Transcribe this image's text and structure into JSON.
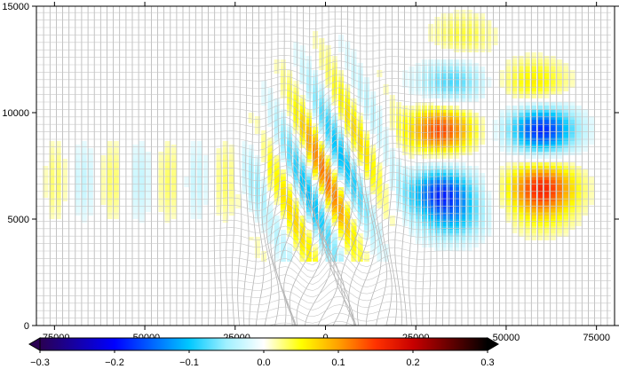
{
  "chart_data": {
    "type": "heatmap",
    "title": "",
    "xlabel": "",
    "ylabel": "",
    "xlim": [
      -80000,
      80000
    ],
    "ylim": [
      0,
      15000
    ],
    "x_ticks": [
      {
        "value": -75000,
        "label": "-75000"
      },
      {
        "value": -50000,
        "label": "-50000"
      },
      {
        "value": -25000,
        "label": "-25000"
      },
      {
        "value": 0,
        "label": "0"
      },
      {
        "value": 25000,
        "label": "25000"
      },
      {
        "value": 50000,
        "label": "50000"
      },
      {
        "value": 75000,
        "label": "75000"
      }
    ],
    "y_ticks": [
      {
        "value": 0,
        "label": "0"
      },
      {
        "value": 5000,
        "label": "5000"
      },
      {
        "value": 10000,
        "label": "10000"
      },
      {
        "value": 15000,
        "label": "15000"
      }
    ],
    "grid": "vertical and horizontal gray contour lines",
    "colorbar": {
      "range": [
        -0.3,
        0.3
      ],
      "extend": "both",
      "placement": "bottom",
      "ticks": [
        {
          "value": -0.3,
          "label": "−0.3"
        },
        {
          "value": -0.2,
          "label": "−0.2"
        },
        {
          "value": -0.1,
          "label": "−0.1"
        },
        {
          "value": 0.0,
          "label": "0.0"
        },
        {
          "value": 0.1,
          "label": "0.1"
        },
        {
          "value": 0.2,
          "label": "0.2"
        },
        {
          "value": 0.3,
          "label": "0.3"
        }
      ],
      "stops": [
        {
          "value": -0.3,
          "color": "#2a0052"
        },
        {
          "value": -0.2,
          "color": "#0000ff"
        },
        {
          "value": -0.15,
          "color": "#0064ff"
        },
        {
          "value": -0.1,
          "color": "#00c8ff"
        },
        {
          "value": -0.05,
          "color": "#a0f0ff"
        },
        {
          "value": 0.0,
          "color": "#ffffff"
        },
        {
          "value": 0.05,
          "color": "#ffff00"
        },
        {
          "value": 0.1,
          "color": "#ffa000"
        },
        {
          "value": 0.15,
          "color": "#ff3200"
        },
        {
          "value": 0.2,
          "color": "#c80000"
        },
        {
          "value": 0.3,
          "color": "#000000"
        }
      ]
    },
    "field_blobs": [
      {
        "x": 32000,
        "y": 9200,
        "value": 0.14
      },
      {
        "x": 60000,
        "y": 9200,
        "value": -0.18
      },
      {
        "x": 32000,
        "y": 6300,
        "value": -0.16
      },
      {
        "x": 60000,
        "y": 6500,
        "value": 0.15
      },
      {
        "x": 35000,
        "y": 11400,
        "value": -0.08
      },
      {
        "x": 58000,
        "y": 11400,
        "value": 0.06
      },
      {
        "x": 38000,
        "y": 13600,
        "value": 0.04
      },
      {
        "x": 35000,
        "y": 5000,
        "value": -0.09
      },
      {
        "x": 60000,
        "y": 5200,
        "value": 0.04
      }
    ],
    "contour_columns_x_range": [
      -78000,
      78000
    ],
    "contour_columns_count": 90,
    "contour_row_spacing": 350
  }
}
